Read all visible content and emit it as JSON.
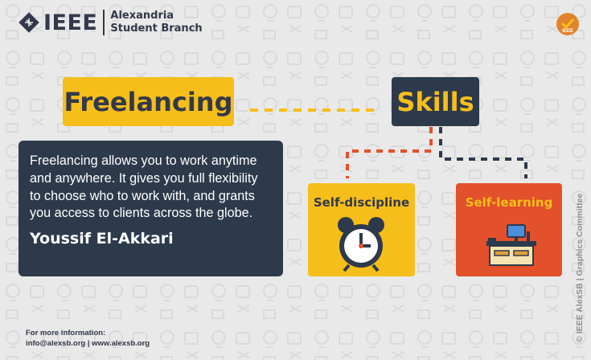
{
  "branding": {
    "org": "IEEE",
    "branch_line1": "Alexandria",
    "branch_line2": "Student Branch",
    "badge_text": "IEEE"
  },
  "headline": {
    "left": "Freelancing",
    "right": "Skills"
  },
  "quote": {
    "text": "Freelancing allows you to work anytime and anywhere. It gives you full flexibility to choose who to work with, and grants you access to clients across the globe.",
    "author": "Youssif El-Akkari"
  },
  "skills": [
    {
      "label": "Self-discipline",
      "icon": "alarm-clock-icon",
      "text_color": "#33394a"
    },
    {
      "label": "Self-learning",
      "icon": "desk-computer-icon",
      "text_color": "#f6be1a"
    }
  ],
  "footer": {
    "line1": "For more information:",
    "line2": "info@alexsb.org | www.alexsb.org"
  },
  "credit": "© IEEE AlexSB | Graphics Committee",
  "colors": {
    "yellow": "#f6be1a",
    "navy": "#2d3a4b",
    "orange": "#e2512b",
    "background": "#e9e9e9"
  }
}
